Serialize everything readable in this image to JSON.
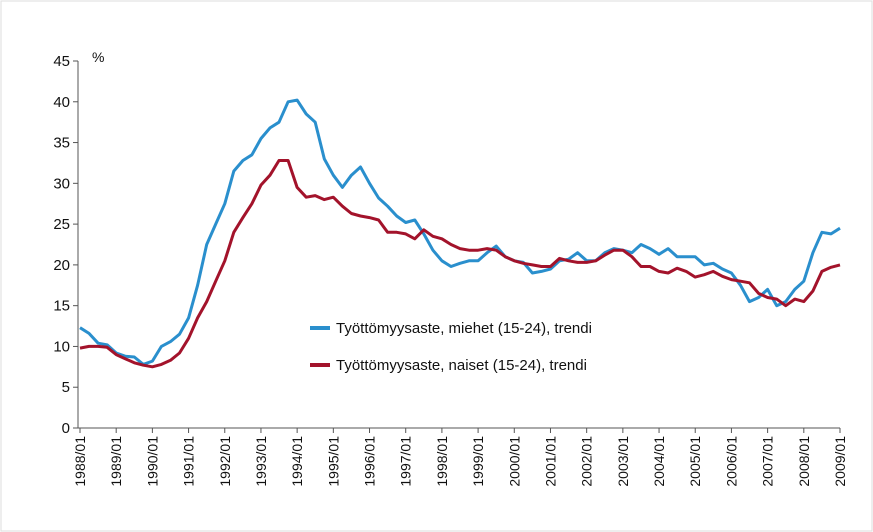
{
  "chart_data": {
    "type": "line",
    "y_label": "%",
    "categories": [
      "1988/01",
      null,
      null,
      null,
      "1989/01",
      null,
      null,
      null,
      "1990/01",
      null,
      null,
      null,
      "1991/01",
      null,
      null,
      null,
      "1992/01",
      null,
      null,
      null,
      "1993/01",
      null,
      null,
      null,
      "1994/01",
      null,
      null,
      null,
      "1995/01",
      null,
      null,
      null,
      "1996/01",
      null,
      null,
      null,
      "1997/01",
      null,
      null,
      null,
      "1998/01",
      null,
      null,
      null,
      "1999/01",
      null,
      null,
      null,
      "2000/01",
      null,
      null,
      null,
      "2001/01",
      null,
      null,
      null,
      "2002/01",
      null,
      null,
      null,
      "2003/01",
      null,
      null,
      null,
      "2004/01",
      null,
      null,
      null,
      "2005/01",
      null,
      null,
      null,
      "2006/01",
      null,
      null,
      null,
      "2007/01",
      null,
      null,
      null,
      "2008/01",
      null,
      null,
      null,
      "2009/01"
    ],
    "series": [
      {
        "name": "Työttömyysaste, miehet (15-24), trendi",
        "color": "#2a8fcd",
        "values": [
          12.3,
          11.6,
          10.4,
          10.2,
          9.2,
          8.8,
          8.7,
          7.8,
          8.2,
          10.0,
          10.6,
          11.5,
          13.5,
          17.5,
          22.5,
          25,
          27.5,
          31.5,
          32.8,
          33.5,
          35.5,
          36.8,
          37.5,
          40,
          40.2,
          38.5,
          37.5,
          33,
          31,
          29.5,
          31,
          32,
          30,
          28.2,
          27.2,
          26,
          25.2,
          25.5,
          23.8,
          21.8,
          20.5,
          19.8,
          20.2,
          20.5,
          20.5,
          21.5,
          22.3,
          21,
          20.5,
          20.3,
          19,
          19.2,
          19.5,
          20.5,
          20.7,
          21.5,
          20.5,
          20.5,
          21.5,
          22,
          21.8,
          21.5,
          22.5,
          22,
          21.3,
          22,
          21,
          21,
          21,
          20,
          20.2,
          19.5,
          19,
          17.5,
          15.5,
          16,
          17,
          15,
          15.5,
          17,
          18,
          21.5,
          24,
          23.8,
          24.5
        ]
      },
      {
        "name": "Työttömyysaste, naiset (15-24), trendi",
        "color": "#a3132b",
        "values": [
          9.8,
          10.0,
          10.0,
          9.9,
          9.0,
          8.5,
          8.0,
          7.7,
          7.5,
          7.8,
          8.3,
          9.2,
          11.0,
          13.5,
          15.5,
          18.0,
          20.5,
          24.0,
          25.8,
          27.5,
          29.8,
          31.0,
          32.8,
          32.8,
          29.5,
          28.3,
          28.5,
          28.0,
          28.3,
          27.2,
          26.3,
          26.0,
          25.8,
          25.5,
          24.0,
          24.0,
          23.8,
          23.2,
          24.3,
          23.5,
          23.2,
          22.5,
          22.0,
          21.8,
          21.8,
          22.0,
          21.8,
          21.0,
          20.5,
          20.2,
          20.0,
          19.8,
          19.8,
          20.8,
          20.5,
          20.3,
          20.3,
          20.5,
          21.2,
          21.8,
          21.8,
          21.0,
          19.8,
          19.8,
          19.2,
          19.0,
          19.6,
          19.2,
          18.5,
          18.8,
          19.2,
          18.6,
          18.2,
          18.0,
          17.8,
          16.5,
          16.0,
          15.8,
          15.0,
          15.8,
          15.5,
          16.8,
          19.2,
          19.7,
          20.0
        ]
      }
    ],
    "ylim": [
      0,
      45
    ],
    "yticks": [
      0,
      5,
      10,
      15,
      20,
      25,
      30,
      35,
      40,
      45
    ],
    "grid": false
  }
}
